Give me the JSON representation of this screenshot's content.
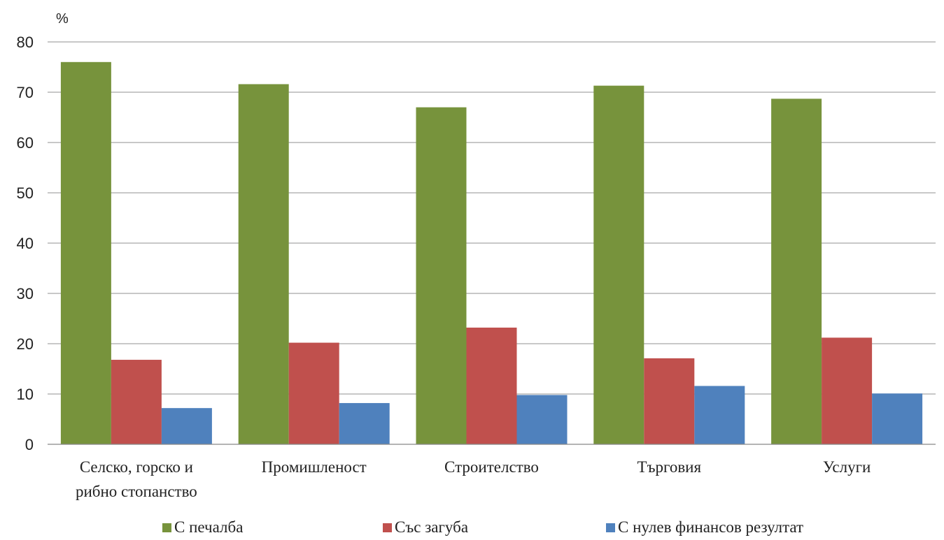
{
  "chart_data": {
    "type": "bar",
    "unit_label": "%",
    "categories": [
      [
        "Селско,  горско и",
        "рибно стопанство"
      ],
      [
        "Промишленост"
      ],
      [
        "Строителство"
      ],
      [
        "Търговия"
      ],
      [
        "Услуги"
      ]
    ],
    "series": [
      {
        "name": "С печалба",
        "color": "#77933c",
        "values": [
          76.0,
          71.6,
          67.0,
          71.3,
          68.7
        ]
      },
      {
        "name": "Със загуба",
        "color": "#c0504d",
        "values": [
          16.8,
          20.2,
          23.2,
          17.1,
          21.2
        ]
      },
      {
        "name": "С нулев финансов  резултат",
        "color": "#4f81bd",
        "values": [
          7.2,
          8.2,
          9.8,
          11.6,
          10.1
        ]
      }
    ],
    "y_ticks": [
      0,
      10,
      20,
      30,
      40,
      50,
      60,
      70,
      80
    ],
    "ylim": [
      0,
      80
    ],
    "grid": true,
    "legend_position": "bottom"
  }
}
